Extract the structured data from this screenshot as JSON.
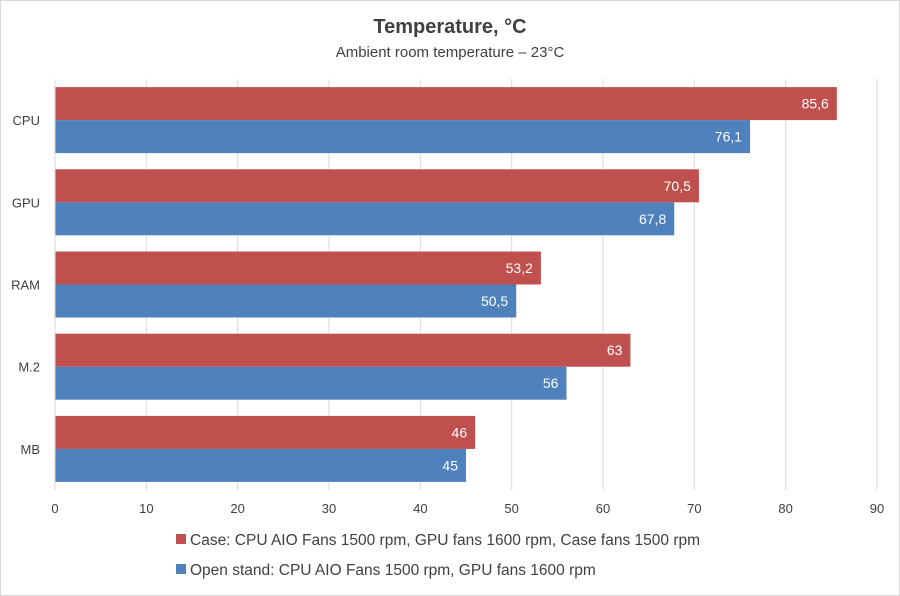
{
  "chart_data": {
    "type": "bar",
    "orientation": "horizontal",
    "title": "Temperature, °C",
    "subtitle": "Ambient room temperature – 23°C",
    "categories": [
      "CPU",
      "GPU",
      "RAM",
      "M.2",
      "MB"
    ],
    "series": [
      {
        "name": "Case: CPU AIO Fans 1500 rpm, GPU fans 1600 rpm, Case fans 1500 rpm",
        "color": "#c0504d",
        "values": [
          85.6,
          70.5,
          53.2,
          63,
          46
        ],
        "labels": [
          "85,6",
          "70,5",
          "53,2",
          "63",
          "46"
        ]
      },
      {
        "name": "Open stand: CPU AIO Fans 1500 rpm, GPU fans 1600 rpm",
        "color": "#4f81bd",
        "values": [
          76.1,
          67.8,
          50.5,
          56,
          45
        ],
        "labels": [
          "76,1",
          "67,8",
          "50,5",
          "56",
          "45"
        ]
      }
    ],
    "xlim": [
      0,
      90
    ],
    "xticks": [
      "0",
      "10",
      "20",
      "30",
      "40",
      "50",
      "60",
      "70",
      "80",
      "90"
    ],
    "grid": true,
    "legend_position": "bottom"
  }
}
